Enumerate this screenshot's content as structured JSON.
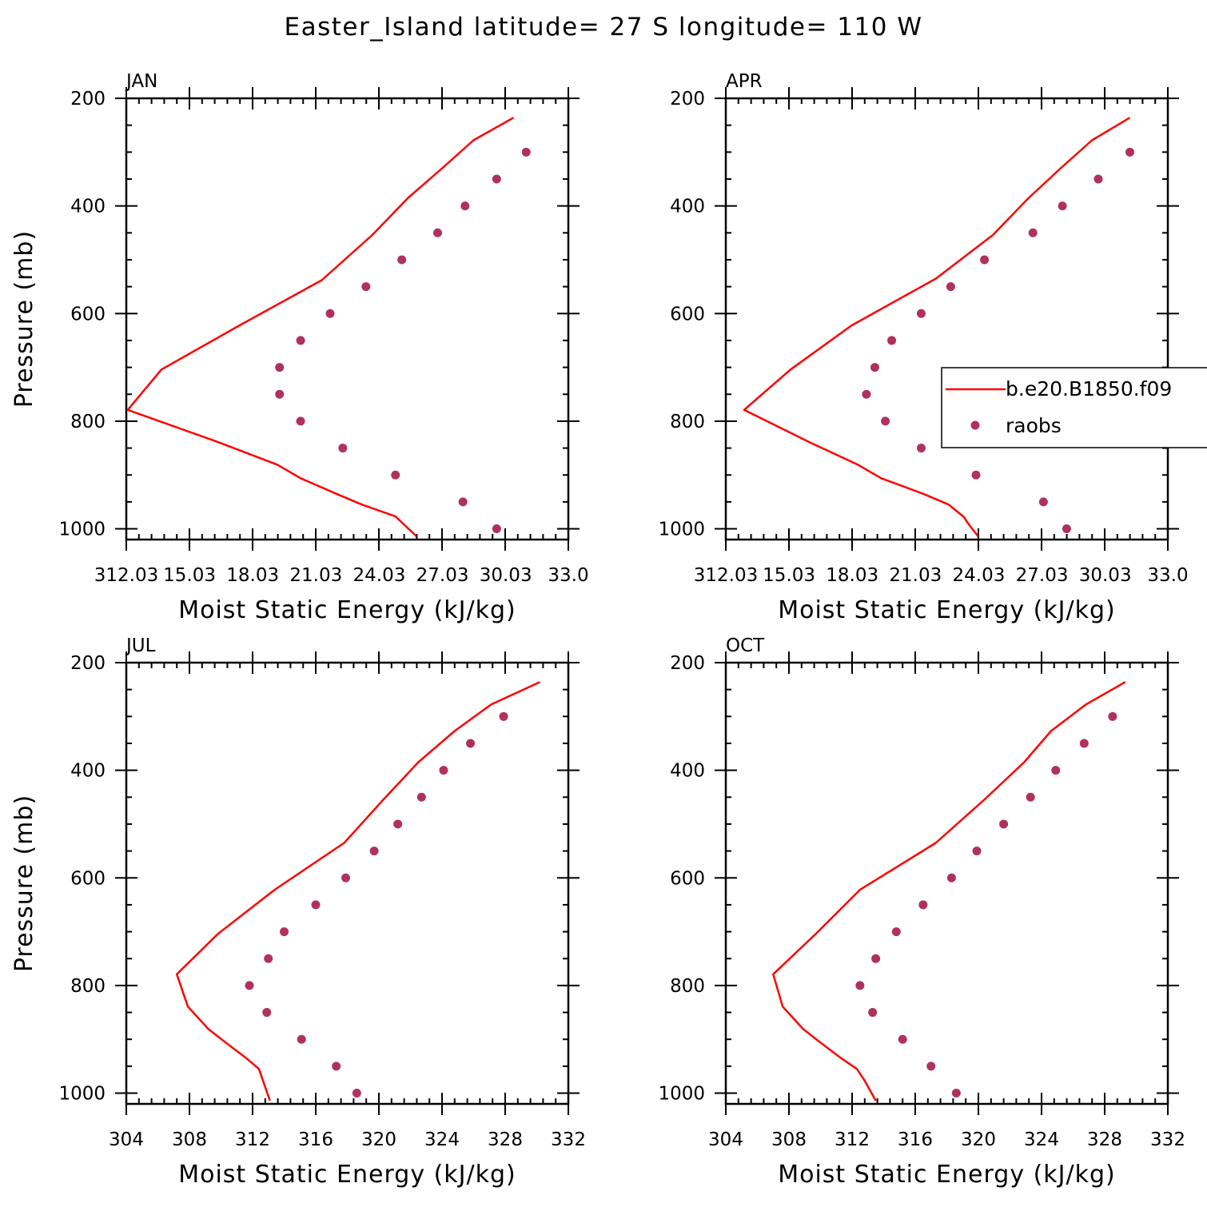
{
  "figure": {
    "title": "Easter_Island  latitude= 27 S longitude= 110 W"
  },
  "colors": {
    "model": "#ff0000",
    "obs": "#b0305e",
    "axes": "#000000"
  },
  "legend": {
    "placement": "right of APR panel",
    "entries": [
      {
        "label": "b.e20.B1850.f09",
        "marker": "line",
        "color": "#ff0000"
      },
      {
        "label": "raobs",
        "marker": "dot",
        "color": "#b0305e"
      }
    ]
  },
  "chart_data": [
    {
      "type": "line",
      "panel": "JAN",
      "xlabel": "Moist Static Energy (kJ/kg)",
      "ylabel": "Pressure (mb)",
      "xlim": [
        312.03,
        333.0
      ],
      "ylim": [
        1020,
        200
      ],
      "xticklabels": [
        "312.03",
        "15.03",
        "18.03",
        "21.03",
        "24.03",
        "27.03",
        "30.03",
        "33.0"
      ],
      "xtickvalues": [
        312.03,
        315.03,
        318.03,
        321.03,
        324.03,
        327.03,
        330.03,
        333.0
      ],
      "yticks": [
        200,
        400,
        600,
        800,
        1000
      ],
      "series": [
        {
          "name": "b.e20.B1850.f09",
          "style": "line",
          "x": [
            330.4,
            328.5,
            327.1,
            325.4,
            323.7,
            321.3,
            317.4,
            313.7,
            312.1,
            316.4,
            319.2,
            320.3,
            322.0,
            323.2,
            324.8,
            325.8
          ],
          "y": [
            236,
            278,
            327,
            385,
            454,
            538,
            622,
            704,
            779,
            839,
            881,
            906,
            935,
            955,
            977,
            1014
          ]
        },
        {
          "name": "raobs",
          "style": "dots",
          "x": [
            331.0,
            329.6,
            328.1,
            326.8,
            325.1,
            323.4,
            321.7,
            320.3,
            319.3,
            319.3,
            320.3,
            322.3,
            324.8,
            328.0,
            329.6
          ],
          "y": [
            300,
            350,
            400,
            450,
            500,
            550,
            600,
            650,
            700,
            750,
            800,
            850,
            900,
            950,
            1000
          ]
        }
      ]
    },
    {
      "type": "line",
      "panel": "APR",
      "xlabel": "Moist Static Energy (kJ/kg)",
      "ylabel": "",
      "xlim": [
        312.03,
        333.0
      ],
      "ylim": [
        1020,
        200
      ],
      "xticklabels": [
        "312.03",
        "15.03",
        "18.03",
        "21.03",
        "24.03",
        "27.03",
        "30.03",
        "33.0"
      ],
      "xtickvalues": [
        312.03,
        315.03,
        318.03,
        321.03,
        324.03,
        327.03,
        330.03,
        333.0
      ],
      "yticks": [
        200,
        400,
        600,
        800,
        1000
      ],
      "series": [
        {
          "name": "b.e20.B1850.f09",
          "style": "line",
          "x": [
            331.2,
            329.4,
            328.0,
            326.4,
            324.7,
            322.0,
            318.0,
            315.1,
            312.9,
            316.0,
            318.3,
            319.4,
            321.4,
            322.6,
            323.3,
            323.6,
            324.0
          ],
          "y": [
            236,
            278,
            327,
            385,
            454,
            535,
            622,
            704,
            779,
            839,
            881,
            906,
            935,
            955,
            977,
            994,
            1014
          ]
        },
        {
          "name": "raobs",
          "style": "dots",
          "x": [
            331.2,
            329.7,
            328.0,
            326.6,
            324.3,
            322.7,
            321.3,
            319.9,
            319.1,
            318.7,
            319.6,
            321.3,
            323.9,
            327.1,
            328.2
          ],
          "y": [
            300,
            350,
            400,
            450,
            500,
            550,
            600,
            650,
            700,
            750,
            800,
            850,
            900,
            950,
            1000
          ]
        }
      ]
    },
    {
      "type": "line",
      "panel": "JUL",
      "xlabel": "Moist Static Energy (kJ/kg)",
      "ylabel": "Pressure (mb)",
      "xlim": [
        304,
        332
      ],
      "ylim": [
        1020,
        200
      ],
      "xticklabels": [
        "304",
        "308",
        "312",
        "316",
        "320",
        "324",
        "328",
        "332"
      ],
      "xtickvalues": [
        304,
        308,
        312,
        316,
        320,
        324,
        328,
        332
      ],
      "yticks": [
        200,
        400,
        600,
        800,
        1000
      ],
      "series": [
        {
          "name": "b.e20.B1850.f09",
          "style": "line",
          "x": [
            330.2,
            327.1,
            324.8,
            322.5,
            320.3,
            317.8,
            313.4,
            309.8,
            307.2,
            307.9,
            309.2,
            310.3,
            311.6,
            312.4,
            313.1
          ],
          "y": [
            236,
            278,
            327,
            385,
            454,
            535,
            622,
            704,
            779,
            839,
            881,
            906,
            935,
            955,
            1014
          ]
        },
        {
          "name": "raobs",
          "style": "dots",
          "x": [
            327.9,
            325.8,
            324.1,
            322.7,
            321.2,
            319.7,
            317.9,
            316.0,
            314.0,
            313.0,
            311.8,
            312.9,
            315.1,
            317.3,
            318.6
          ],
          "y": [
            300,
            350,
            400,
            450,
            500,
            550,
            600,
            650,
            700,
            750,
            800,
            850,
            900,
            950,
            1000
          ]
        }
      ]
    },
    {
      "type": "line",
      "panel": "OCT",
      "xlabel": "Moist Static Energy (kJ/kg)",
      "ylabel": "",
      "xlim": [
        304,
        332
      ],
      "ylim": [
        1020,
        200
      ],
      "xticklabels": [
        "304",
        "308",
        "312",
        "316",
        "320",
        "324",
        "328",
        "332"
      ],
      "xtickvalues": [
        304,
        308,
        312,
        316,
        320,
        324,
        328,
        332
      ],
      "yticks": [
        200,
        400,
        600,
        800,
        1000
      ],
      "series": [
        {
          "name": "b.e20.B1850.f09",
          "style": "line",
          "x": [
            329.3,
            326.8,
            324.6,
            322.9,
            320.4,
            317.3,
            312.5,
            309.7,
            307.0,
            307.6,
            308.9,
            310.0,
            311.3,
            312.3,
            312.8,
            313.5
          ],
          "y": [
            236,
            278,
            327,
            385,
            454,
            535,
            622,
            704,
            779,
            839,
            881,
            906,
            935,
            955,
            977,
            1014
          ]
        },
        {
          "name": "raobs",
          "style": "dots",
          "x": [
            328.5,
            326.7,
            324.9,
            323.3,
            321.6,
            319.9,
            318.3,
            316.5,
            314.8,
            313.5,
            312.5,
            313.3,
            315.2,
            317.0,
            318.6
          ],
          "y": [
            300,
            350,
            400,
            450,
            500,
            550,
            600,
            650,
            700,
            750,
            800,
            850,
            900,
            950,
            1000
          ]
        }
      ]
    }
  ]
}
